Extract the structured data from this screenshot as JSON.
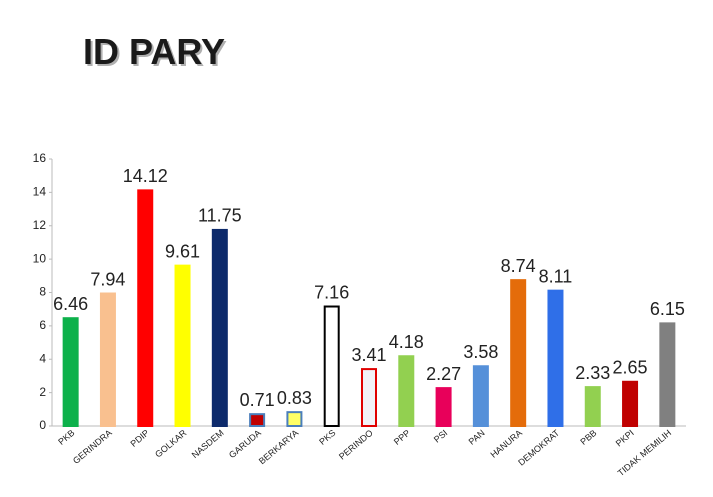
{
  "chart_data": {
    "type": "bar",
    "title": "ID PARY",
    "categories": [
      "PKB",
      "GERINDRA",
      "PDIP",
      "GOLKAR",
      "NASDEM",
      "GARUDA",
      "BERKARYA",
      "PKS",
      "PERINDO",
      "PPP",
      "PSI",
      "PAN",
      "HANURA",
      "DEMOKRAT",
      "PBB",
      "PKPI",
      "TIDAK MEMILIH"
    ],
    "values": [
      6.46,
      7.94,
      14.12,
      9.61,
      11.75,
      0.71,
      0.83,
      7.16,
      3.41,
      4.18,
      2.27,
      3.58,
      8.74,
      8.11,
      2.33,
      2.65,
      6.15
    ],
    "colors": [
      "#0db14b",
      "#f9c08f",
      "#ff0000",
      "#ffff00",
      "#0d2a6b",
      "#c00000",
      "#ffff66",
      "#ffffff",
      "#f2f2f7",
      "#92d050",
      "#e8005a",
      "#5590d9",
      "#e46c0a",
      "#2f6fe8",
      "#92d050",
      "#c00000",
      "#808080"
    ],
    "edge_colors": [
      "#0db14b",
      "#f9c08f",
      "#ff0000",
      "#ffff00",
      "#0d2a6b",
      "#4a7ebb",
      "#4a7ebb",
      "#000000",
      "#e00000",
      "#92d050",
      "#e8005a",
      "#5590d9",
      "#e46c0a",
      "#2f6fe8",
      "#92d050",
      "#c00000",
      "#808080"
    ],
    "ylim": [
      0,
      16
    ],
    "yticks": [
      0,
      2,
      4,
      6,
      8,
      10,
      12,
      14,
      16
    ],
    "grid": false
  }
}
